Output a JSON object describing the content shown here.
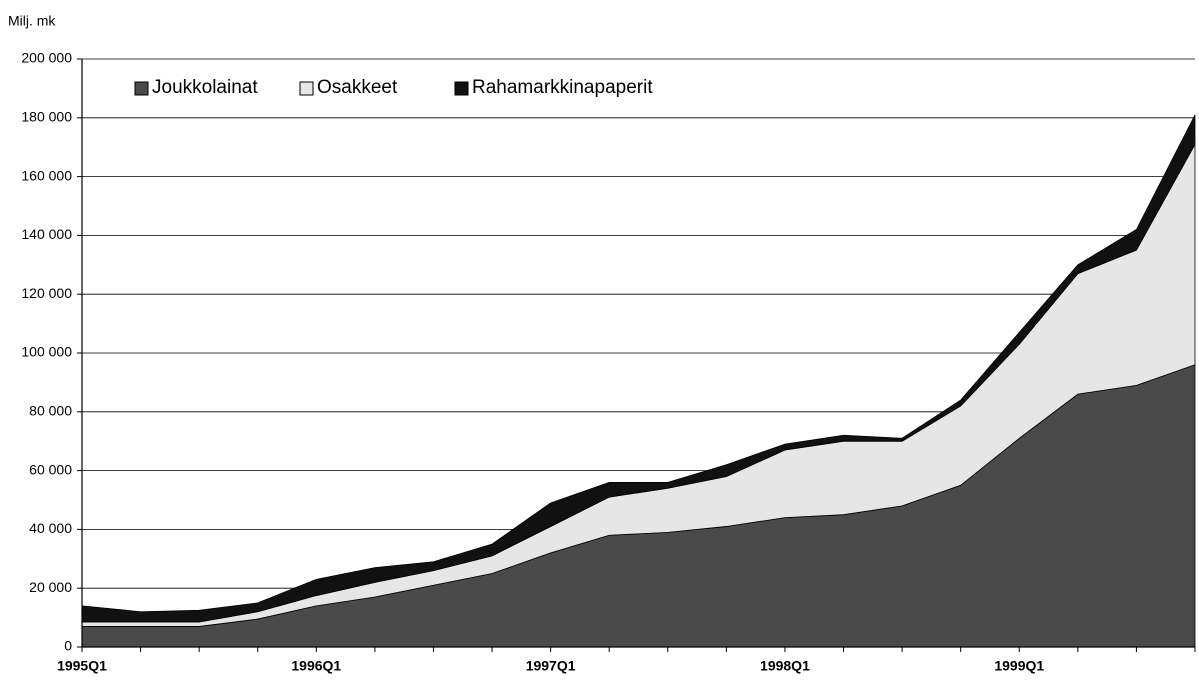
{
  "chart_data": {
    "type": "stacked_area",
    "ylabel": "Milj. mk",
    "categories": [
      "1995Q1",
      null,
      null,
      null,
      "1996Q1",
      null,
      null,
      null,
      "1997Q1",
      null,
      null,
      null,
      "1998Q1",
      null,
      null,
      null,
      "1999Q1",
      null,
      null,
      null
    ],
    "series": [
      {
        "name": "Joukkolainat",
        "color": "#4a4a4a",
        "values": [
          7000,
          7000,
          7000,
          9500,
          14000,
          17000,
          21000,
          25000,
          32000,
          38000,
          39000,
          41000,
          44000,
          45000,
          48000,
          55000,
          71000,
          86000,
          89000,
          96000
        ]
      },
      {
        "name": "Osakkeet",
        "color": "#e6e6e6",
        "values": [
          1500,
          1500,
          1500,
          2500,
          3500,
          5000,
          5000,
          6000,
          9000,
          13000,
          15000,
          17000,
          23000,
          25000,
          22000,
          27000,
          32000,
          41000,
          46000,
          75000
        ]
      },
      {
        "name": "Rahamarkkinapaperit",
        "color": "#111111",
        "values": [
          5500,
          3500,
          4000,
          3000,
          5500,
          5000,
          3000,
          4000,
          8000,
          5000,
          2000,
          4000,
          2000,
          2000,
          1000,
          2000,
          4000,
          3000,
          7000,
          10000
        ]
      }
    ],
    "ylim": [
      0,
      200000
    ],
    "yticks": [
      0,
      {
        "value": 20000,
        "label": "20 000"
      },
      {
        "value": 40000,
        "label": "40 000"
      },
      {
        "value": 60000,
        "label": "60 000"
      },
      {
        "value": 80000,
        "label": "80 000"
      },
      {
        "value": 100000,
        "label": "100 000"
      },
      {
        "value": 120000,
        "label": "120 000"
      },
      {
        "value": 140000,
        "label": "140 000"
      },
      {
        "value": 160000,
        "label": "160 000"
      },
      {
        "value": 180000,
        "label": "180 000"
      },
      {
        "value": 200000,
        "label": "200 000"
      }
    ],
    "grid": true,
    "legend": "top-left"
  }
}
